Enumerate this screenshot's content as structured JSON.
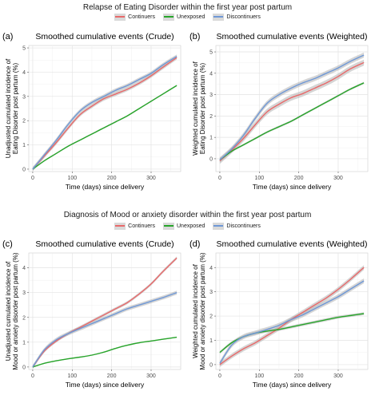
{
  "sections": [
    {
      "title": "Relapse of Eating Disorder within the first year post partum",
      "legend": [
        "Continuers",
        "Unexposed",
        "Discontinuers"
      ]
    },
    {
      "title": "Diagnosis of Mood or anxiety disorder within the first year post partum",
      "legend": [
        "Continuers",
        "Unexposed",
        "Discontinuers"
      ]
    }
  ],
  "colors": {
    "Continuers": "#e8696a",
    "Unexposed": "#27a52a",
    "Discontinuers": "#6f98d6"
  },
  "chart_data": [
    {
      "type": "line",
      "panel_label": "(a)",
      "title": "Smoothed cumulative events (Crude)",
      "xlabel": "Time (days) since delivery",
      "ylabel": [
        "Unadjusted cumulated incidence of",
        "Eating Disorder post partum (%)"
      ],
      "xlim": [
        -10,
        375
      ],
      "ylim": [
        -0.1,
        5.1
      ],
      "xticks": [
        0,
        100,
        200,
        300
      ],
      "yticks": [
        0,
        1,
        2,
        3,
        4,
        5
      ],
      "x": [
        0,
        30,
        60,
        90,
        120,
        150,
        180,
        210,
        240,
        270,
        300,
        330,
        365
      ],
      "series": [
        {
          "name": "Continuers",
          "values": [
            0.0,
            0.55,
            1.1,
            1.7,
            2.25,
            2.6,
            2.9,
            3.1,
            3.3,
            3.55,
            3.85,
            4.2,
            4.6
          ],
          "band": 0.08
        },
        {
          "name": "Unexposed",
          "values": [
            0.0,
            0.35,
            0.65,
            0.95,
            1.2,
            1.45,
            1.7,
            1.95,
            2.2,
            2.5,
            2.8,
            3.1,
            3.45
          ],
          "band": 0.03
        },
        {
          "name": "Discontinuers",
          "values": [
            0.0,
            0.6,
            1.2,
            1.85,
            2.4,
            2.75,
            3.0,
            3.25,
            3.45,
            3.7,
            3.95,
            4.3,
            4.65
          ],
          "band": 0.08
        }
      ]
    },
    {
      "type": "line",
      "panel_label": "(b)",
      "title": "Smoothed cumulative events (Weighted)",
      "xlabel": "Time (days) since delivery",
      "ylabel": [
        "Weighted cumulated incidence of",
        "Eating Disorder post partum (%)"
      ],
      "xlim": [
        -10,
        375
      ],
      "ylim": [
        -0.6,
        5.3
      ],
      "xticks": [
        0,
        100,
        200,
        300
      ],
      "yticks": [
        0,
        1,
        2,
        3,
        4,
        5
      ],
      "x": [
        0,
        30,
        60,
        90,
        120,
        150,
        180,
        210,
        240,
        270,
        300,
        330,
        365
      ],
      "series": [
        {
          "name": "Continuers",
          "values": [
            -0.1,
            0.4,
            0.95,
            1.6,
            2.2,
            2.55,
            2.85,
            3.05,
            3.3,
            3.55,
            3.85,
            4.2,
            4.5
          ],
          "band": 0.14
        },
        {
          "name": "Unexposed",
          "values": [
            -0.05,
            0.35,
            0.65,
            0.95,
            1.25,
            1.5,
            1.75,
            2.05,
            2.35,
            2.65,
            2.95,
            3.25,
            3.55
          ],
          "band": 0.05
        },
        {
          "name": "Discontinuers",
          "values": [
            -0.05,
            0.45,
            1.1,
            1.9,
            2.6,
            3.0,
            3.3,
            3.55,
            3.75,
            4.0,
            4.25,
            4.55,
            4.85
          ],
          "band": 0.12
        }
      ]
    },
    {
      "type": "line",
      "panel_label": "(c)",
      "title": "Smoothed cumulative events (Crude)",
      "xlabel": "Time (days) since delivery",
      "ylabel": [
        "Unadjusted cumulated incidence of",
        "Mood or anxiety disorder post partum (%)"
      ],
      "xlim": [
        -10,
        375
      ],
      "ylim": [
        -0.1,
        4.6
      ],
      "xticks": [
        0,
        100,
        200,
        300
      ],
      "yticks": [
        0,
        1,
        2,
        3,
        4
      ],
      "x": [
        0,
        30,
        60,
        90,
        120,
        150,
        180,
        210,
        240,
        270,
        300,
        330,
        365
      ],
      "series": [
        {
          "name": "Continuers",
          "values": [
            0.0,
            0.65,
            1.05,
            1.35,
            1.6,
            1.85,
            2.1,
            2.35,
            2.6,
            2.95,
            3.35,
            3.85,
            4.4
          ],
          "band": 0.06
        },
        {
          "name": "Unexposed",
          "values": [
            0.0,
            0.15,
            0.25,
            0.33,
            0.4,
            0.48,
            0.6,
            0.75,
            0.88,
            0.98,
            1.05,
            1.12,
            1.2
          ],
          "band": 0.02
        },
        {
          "name": "Discontinuers",
          "values": [
            0.0,
            0.7,
            1.1,
            1.35,
            1.55,
            1.75,
            1.95,
            2.15,
            2.35,
            2.5,
            2.65,
            2.8,
            3.0
          ],
          "band": 0.08
        }
      ]
    },
    {
      "type": "line",
      "panel_label": "(d)",
      "title": "Smoothed cumulative events (Weighted)",
      "xlabel": "Time (days) since delivery",
      "ylabel": [
        "Weighted cumulated incidence of",
        "Mood or anxiety disorder post partum (%)"
      ],
      "xlim": [
        -10,
        375
      ],
      "ylim": [
        -0.2,
        4.6
      ],
      "xticks": [
        0,
        100,
        200,
        300
      ],
      "yticks": [
        0,
        1,
        2,
        3,
        4
      ],
      "x": [
        0,
        30,
        60,
        90,
        120,
        150,
        180,
        210,
        240,
        270,
        300,
        330,
        365
      ],
      "series": [
        {
          "name": "Continuers",
          "values": [
            0.0,
            0.35,
            0.65,
            0.9,
            1.2,
            1.5,
            1.85,
            2.15,
            2.45,
            2.75,
            3.1,
            3.5,
            4.0
          ],
          "band": 0.1
        },
        {
          "name": "Unexposed",
          "values": [
            0.5,
            0.9,
            1.15,
            1.3,
            1.38,
            1.45,
            1.55,
            1.65,
            1.75,
            1.85,
            1.95,
            2.02,
            2.1
          ],
          "band": 0.06
        },
        {
          "name": "Discontinuers",
          "values": [
            0.05,
            0.8,
            1.15,
            1.3,
            1.45,
            1.62,
            1.85,
            2.05,
            2.3,
            2.55,
            2.8,
            3.1,
            3.45
          ],
          "band": 0.1
        }
      ]
    }
  ]
}
